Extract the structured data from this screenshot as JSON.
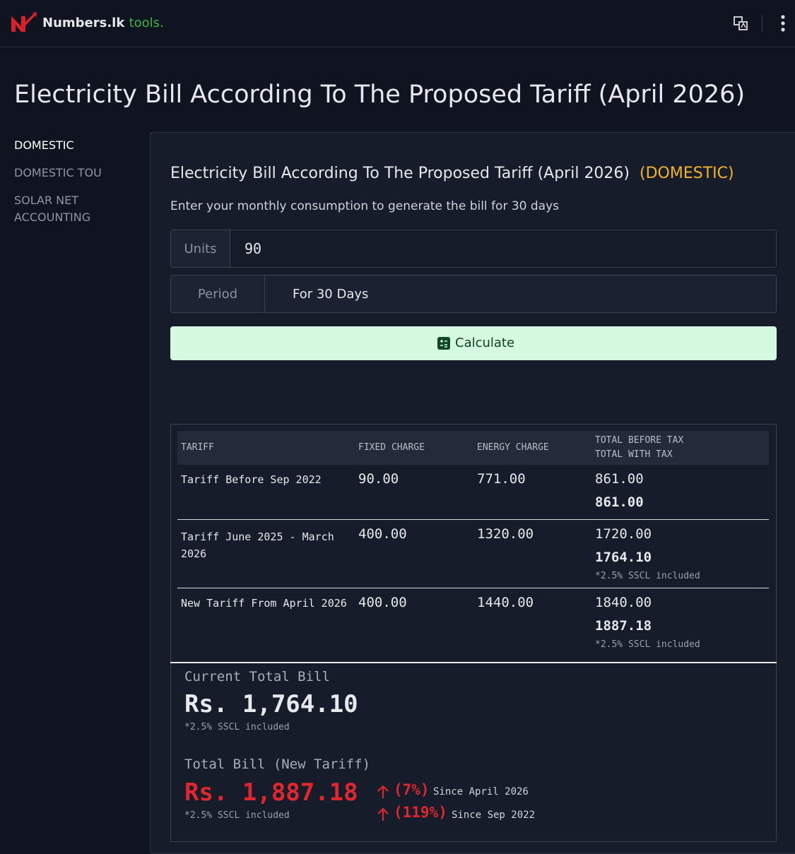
{
  "header": {
    "brand": "Numbers.lk",
    "brand_suffix": "tools."
  },
  "page_title": "Electricity Bill According To The Proposed Tariff (April 2026)",
  "sidebar": [
    "DOMESTIC",
    "DOMESTIC TOU",
    "SOLAR NET ACCOUNTING"
  ],
  "card": {
    "title": "Electricity Bill According To The Proposed Tariff (April 2026)",
    "tag": "(DOMESTIC)",
    "instruction": "Enter your monthly consumption to generate the bill for 30 days",
    "units_label": "Units",
    "units_value": "90",
    "period_label": "Period",
    "period_value": "For 30 Days",
    "button": "Calculate"
  },
  "table": {
    "headers": [
      "TARIFF",
      "FIXED CHARGE",
      "ENERGY CHARGE",
      "TOTAL BEFORE TAX",
      "TOTAL WITH TAX"
    ],
    "rows": [
      {
        "tariff": "Tariff Before Sep 2022",
        "fixed": "90.00",
        "energy": "771.00",
        "before_tax": "861.00",
        "with_tax": "861.00"
      },
      {
        "tariff": "Tariff June 2025 - March 2026",
        "fixed": "400.00",
        "energy": "1320.00",
        "before_tax": "1720.00",
        "with_tax": "1764.10",
        "note": "*2.5% SSCL included"
      },
      {
        "tariff": "New Tariff From April 2026",
        "fixed": "400.00",
        "energy": "1440.00",
        "before_tax": "1840.00",
        "with_tax": "1887.18",
        "note": "*2.5% SSCL included"
      }
    ]
  },
  "summary": {
    "current_label": "Current Total Bill",
    "current_value": "Rs. 1,764.10",
    "current_note": "*2.5% SSCL included",
    "new_label": "Total Bill (New Tariff)",
    "new_value": "Rs. 1,887.18",
    "new_note": "*2.5% SSCL included",
    "changes": [
      {
        "percent": "(7%)",
        "since": "Since April 2026"
      },
      {
        "percent": "(119%)",
        "since": "Since Sep 2022"
      }
    ]
  }
}
